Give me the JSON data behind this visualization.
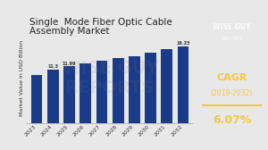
{
  "title_line1": "Single  Mode Fiber Optic Cable",
  "title_line2": "Assembly Market",
  "years": [
    "2023",
    "2024",
    "2025",
    "2026",
    "2027",
    "2028",
    "2029",
    "2030",
    "2031",
    "2032"
  ],
  "values": [
    10.2,
    11.3,
    11.99,
    12.55,
    13.1,
    13.65,
    14.0,
    14.8,
    15.6,
    16.23
  ],
  "bar_color": "#1a3a8a",
  "bg_color": "#e8e8e8",
  "right_panel_color": "#1a2a5a",
  "ylabel": "Market Value in USD Billion",
  "cagr_label": "CAGR",
  "cagr_period": "(2019-2032)",
  "cagr_value": "6.07%",
  "label_values": [
    null,
    "11.3",
    "11.99",
    null,
    null,
    null,
    null,
    null,
    null,
    "16.23"
  ],
  "title_fontsize": 7.5,
  "axis_fontsize": 4.5,
  "ylabel_fontsize": 4.5
}
